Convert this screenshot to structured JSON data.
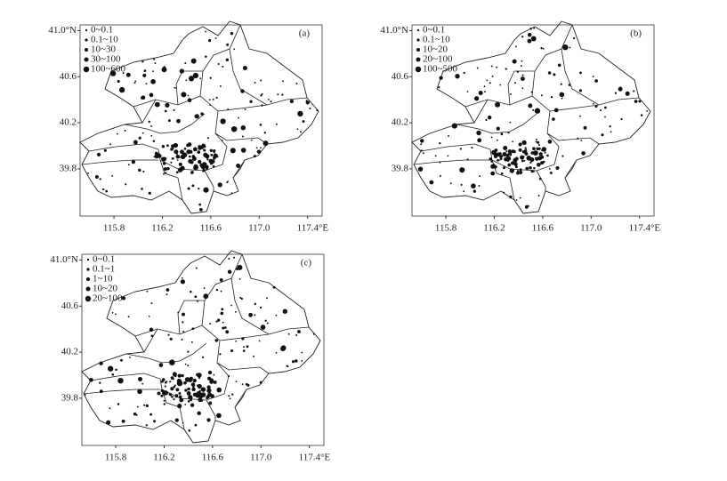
{
  "map": {
    "xlim": [
      115.52,
      117.52
    ],
    "ylim": [
      39.39,
      41.05
    ]
  },
  "panels": [
    {
      "label": "(a)",
      "legend": [
        "0~0.1",
        "0.1~10",
        "10~30",
        "30~100",
        "100~600"
      ],
      "x_ticks": [
        {
          "value": 115.8,
          "label": "115.8"
        },
        {
          "value": 116.2,
          "label": "116.2"
        },
        {
          "value": 116.6,
          "label": "116.6"
        },
        {
          "value": 117.0,
          "label": "117.0"
        },
        {
          "value": 117.4,
          "label": "117.4°E"
        }
      ],
      "y_ticks": [
        {
          "value": 39.8,
          "label": "39.8"
        },
        {
          "value": 40.2,
          "label": "40.2"
        },
        {
          "value": 40.6,
          "label": "40.6"
        },
        {
          "value": 41.0,
          "label": "41.0°N"
        }
      ]
    },
    {
      "label": "(b)",
      "legend": [
        "0~0.1",
        "0.1~10",
        "10~20",
        "20~100",
        "100~500"
      ],
      "x_ticks": [
        {
          "value": 115.8,
          "label": "115.8"
        },
        {
          "value": 116.2,
          "label": "116.2"
        },
        {
          "value": 116.6,
          "label": "116.6"
        },
        {
          "value": 117.0,
          "label": "117.0"
        },
        {
          "value": 117.4,
          "label": "117.4°E"
        }
      ],
      "y_ticks": [
        {
          "value": 39.8,
          "label": "39.8"
        },
        {
          "value": 40.2,
          "label": "40.2"
        },
        {
          "value": 40.6,
          "label": "40.6"
        },
        {
          "value": 41.0,
          "label": "41.0°N"
        }
      ]
    },
    {
      "label": "(c)",
      "legend": [
        "0~0.1",
        "0.1~1",
        "1~10",
        "10~20",
        "20~100"
      ],
      "x_ticks": [
        {
          "value": 115.8,
          "label": "115.8"
        },
        {
          "value": 116.2,
          "label": "116.2"
        },
        {
          "value": 116.6,
          "label": "116.6"
        },
        {
          "value": 117.0,
          "label": "117.0"
        },
        {
          "value": 117.4,
          "label": "117.4°E"
        }
      ],
      "y_ticks": [
        {
          "value": 39.8,
          "label": "39.8"
        },
        {
          "value": 40.2,
          "label": "40.2"
        },
        {
          "value": 40.6,
          "label": "40.6"
        },
        {
          "value": 41.0,
          "label": "41.0°N"
        }
      ]
    }
  ]
}
